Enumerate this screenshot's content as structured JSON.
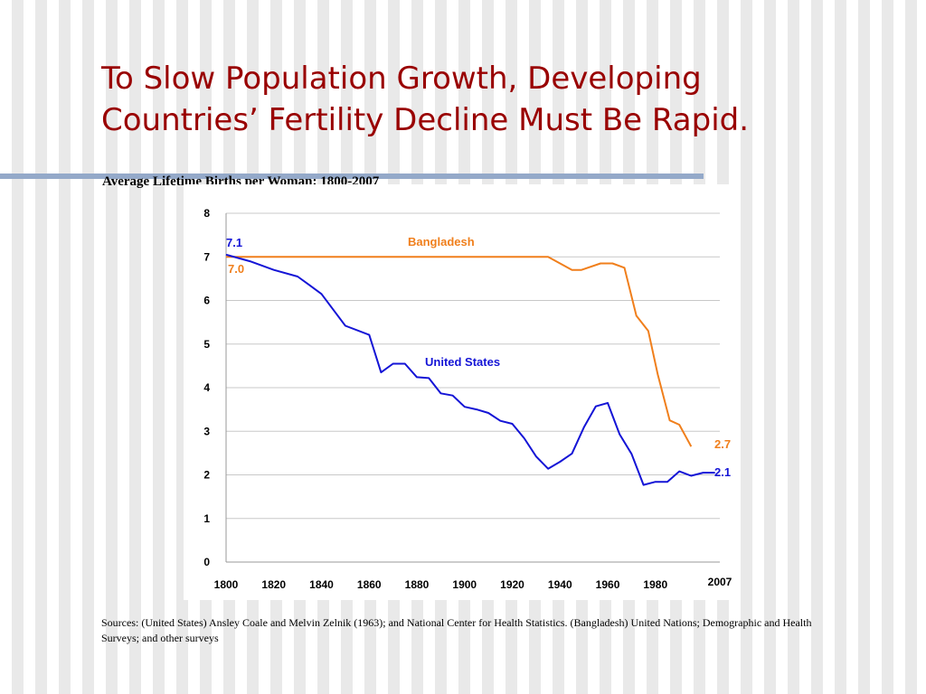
{
  "slide": {
    "title_line1": "To Slow Population Growth, Developing",
    "title_line2": "Countries’ Fertility Decline Must Be Rapid.",
    "sources": "Sources: (United States) Ansley Coale and Melvin Zelnik (1963); and National Center for Health Statistics. (Bangladesh) United Nations; Demographic and Health Surveys; and other surveys"
  },
  "chart_data": {
    "type": "line",
    "title": "Average Lifetime Births per Woman: 1800-2007",
    "xlabel": "",
    "ylabel": "",
    "xlim": [
      1800,
      2007
    ],
    "ylim": [
      0,
      8
    ],
    "x_ticks": [
      "1800",
      "1820",
      "1840",
      "1860",
      "1880",
      "1900",
      "1920",
      "1940",
      "1960",
      "1980",
      "2007"
    ],
    "y_ticks": [
      "0",
      "1",
      "2",
      "3",
      "4",
      "5",
      "6",
      "7",
      "8"
    ],
    "grid": "horizontal",
    "series": [
      {
        "name": "Bangladesh",
        "color": "#f07f1c",
        "start_label": "7.0",
        "end_label": "2.7",
        "points": [
          [
            1800,
            7.0
          ],
          [
            1935,
            7.0
          ],
          [
            1945,
            6.7
          ],
          [
            1949,
            6.7
          ],
          [
            1957,
            6.85
          ],
          [
            1962,
            6.85
          ],
          [
            1967,
            6.75
          ],
          [
            1972,
            5.65
          ],
          [
            1977,
            5.3
          ],
          [
            1981,
            4.3
          ],
          [
            1986,
            3.25
          ],
          [
            1990,
            3.15
          ],
          [
            1995,
            2.65
          ]
        ]
      },
      {
        "name": "United States",
        "color": "#1414d6",
        "start_label": "7.1",
        "end_label": "2.1",
        "points": [
          [
            1800,
            7.05
          ],
          [
            1810,
            6.9
          ],
          [
            1820,
            6.7
          ],
          [
            1830,
            6.55
          ],
          [
            1835,
            6.35
          ],
          [
            1840,
            6.15
          ],
          [
            1850,
            5.42
          ],
          [
            1860,
            5.21
          ],
          [
            1865,
            4.35
          ],
          [
            1870,
            4.55
          ],
          [
            1875,
            4.55
          ],
          [
            1880,
            4.24
          ],
          [
            1885,
            4.22
          ],
          [
            1890,
            3.87
          ],
          [
            1895,
            3.82
          ],
          [
            1900,
            3.56
          ],
          [
            1905,
            3.5
          ],
          [
            1910,
            3.42
          ],
          [
            1915,
            3.24
          ],
          [
            1920,
            3.17
          ],
          [
            1925,
            2.84
          ],
          [
            1930,
            2.42
          ],
          [
            1935,
            2.14
          ],
          [
            1940,
            2.3
          ],
          [
            1945,
            2.49
          ],
          [
            1950,
            3.09
          ],
          [
            1955,
            3.57
          ],
          [
            1960,
            3.65
          ],
          [
            1965,
            2.93
          ],
          [
            1970,
            2.48
          ],
          [
            1975,
            1.77
          ],
          [
            1980,
            1.84
          ],
          [
            1985,
            1.84
          ],
          [
            1990,
            2.08
          ],
          [
            1995,
            1.98
          ],
          [
            2000,
            2.05
          ],
          [
            2005,
            2.05
          ]
        ]
      }
    ]
  }
}
